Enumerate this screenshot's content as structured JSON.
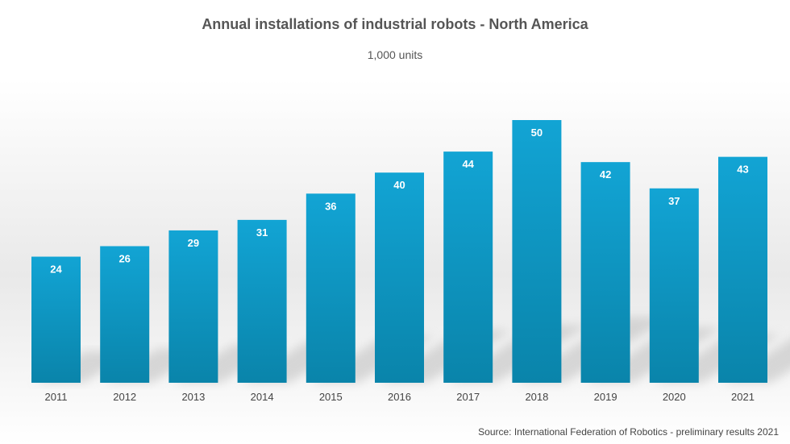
{
  "chart_data": {
    "type": "bar",
    "title": "Annual installations of industrial robots - North America",
    "subtitle": "1,000 units",
    "categories": [
      "2011",
      "2012",
      "2013",
      "2014",
      "2015",
      "2016",
      "2017",
      "2018",
      "2019",
      "2020",
      "2021"
    ],
    "values": [
      24,
      26,
      29,
      31,
      36,
      40,
      44,
      50,
      42,
      37,
      43
    ],
    "ylim": [
      0,
      50
    ],
    "grid": false,
    "legend": "none",
    "data_labels": true,
    "source": "Source: International Federation of Robotics - preliminary results 2021",
    "colors": {
      "bar_top": "#12a4d4",
      "bar_bottom": "#0a84aa",
      "label": "#ffffff",
      "tick": "#444444",
      "shadow": "#bdbdbd"
    }
  }
}
